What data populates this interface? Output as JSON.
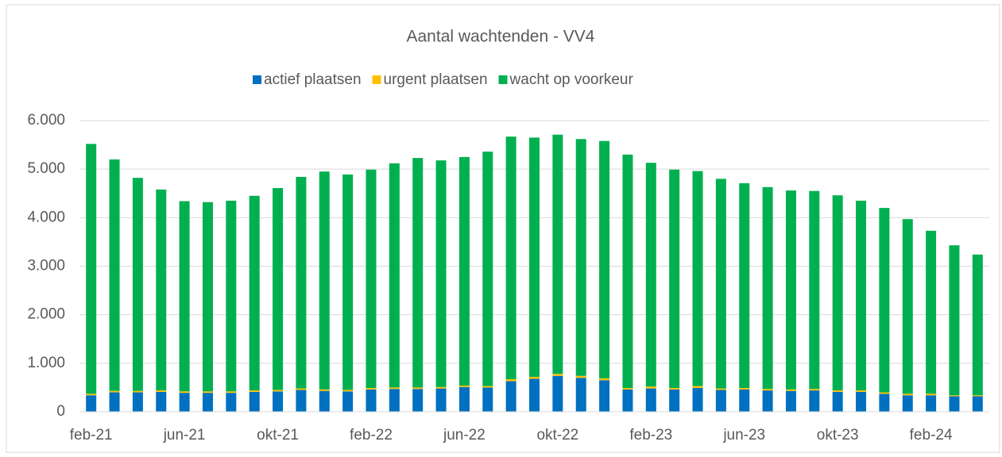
{
  "chart_data": {
    "type": "stacked-bar",
    "title": "Aantal wachtenden - VV4",
    "categories": [
      "feb-21",
      null,
      null,
      null,
      "jun-21",
      null,
      null,
      null,
      "okt-21",
      null,
      null,
      null,
      "feb-22",
      null,
      null,
      null,
      "jun-22",
      null,
      null,
      null,
      "okt-22",
      null,
      null,
      null,
      "feb-23",
      null,
      null,
      null,
      "jun-23",
      null,
      null,
      null,
      "okt-23",
      null,
      null,
      null,
      "feb-24",
      null,
      null
    ],
    "series": [
      {
        "name": "actief plaatsen",
        "color": "#0070c0",
        "values": [
          340,
          400,
          400,
          410,
          390,
          390,
          390,
          410,
          420,
          450,
          430,
          420,
          460,
          470,
          470,
          480,
          510,
          500,
          630,
          680,
          740,
          700,
          650,
          460,
          480,
          460,
          490,
          450,
          460,
          440,
          430,
          440,
          410,
          410,
          370,
          340,
          340,
          320,
          320
        ]
      },
      {
        "name": "urgent plaatsen",
        "color": "#ffc000",
        "values": [
          30,
          30,
          30,
          30,
          30,
          30,
          30,
          30,
          30,
          30,
          30,
          30,
          30,
          30,
          30,
          30,
          30,
          30,
          40,
          40,
          40,
          40,
          40,
          30,
          40,
          30,
          40,
          30,
          30,
          30,
          30,
          30,
          30,
          30,
          30,
          30,
          30,
          20,
          20
        ]
      },
      {
        "name": "wacht op voorkeur",
        "color": "#00b050",
        "values": [
          5150,
          4770,
          4390,
          4140,
          3920,
          3900,
          3930,
          4010,
          4160,
          4360,
          4490,
          4440,
          4500,
          4620,
          4730,
          4670,
          4710,
          4830,
          5000,
          4930,
          4930,
          4880,
          4890,
          4810,
          4610,
          4500,
          4430,
          4320,
          4220,
          4160,
          4100,
          4080,
          4020,
          3910,
          3800,
          3600,
          3360,
          3090,
          2900
        ]
      }
    ],
    "ylim": [
      0,
      6000
    ],
    "yticks": [
      0,
      {
        "value": 1000,
        "label": "1.000"
      },
      {
        "value": 2000,
        "label": "2.000"
      },
      {
        "value": 3000,
        "label": "3.000"
      },
      {
        "value": 4000,
        "label": "4.000"
      },
      {
        "value": 5000,
        "label": "5.000"
      },
      {
        "value": 6000,
        "label": "6.000"
      }
    ],
    "grid": true,
    "legend": "top"
  }
}
